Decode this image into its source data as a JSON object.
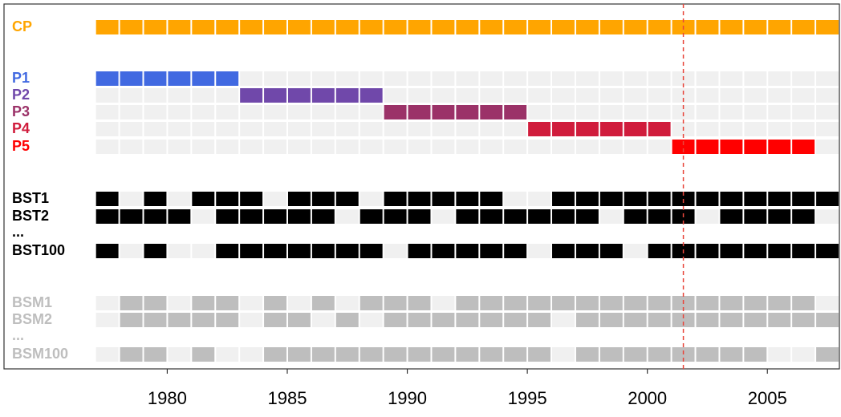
{
  "chart_data": {
    "type": "tile",
    "x": [
      1977,
      1978,
      1979,
      1980,
      1981,
      1982,
      1983,
      1984,
      1985,
      1986,
      1987,
      1988,
      1989,
      1990,
      1991,
      1992,
      1993,
      1994,
      1995,
      1996,
      1997,
      1998,
      1999,
      2000,
      2001,
      2002,
      2003,
      2004,
      2005,
      2006,
      2007
    ],
    "xlim": [
      1973.2,
      2008
    ],
    "xticks": [
      1980,
      1985,
      1990,
      1995,
      2000,
      2005
    ],
    "empty_color": "#f0f0f0",
    "vline": {
      "value": 2001.5,
      "color": "#e8463c"
    },
    "series": [
      {
        "name": "CP",
        "color": "#ffa500",
        "values": [
          1,
          1,
          1,
          1,
          1,
          1,
          1,
          1,
          1,
          1,
          1,
          1,
          1,
          1,
          1,
          1,
          1,
          1,
          1,
          1,
          1,
          1,
          1,
          1,
          1,
          1,
          1,
          1,
          1,
          1,
          1
        ]
      },
      {
        "name": "P1",
        "color": "#4169e1",
        "values": [
          1,
          1,
          1,
          1,
          1,
          1,
          0,
          0,
          0,
          0,
          0,
          0,
          0,
          0,
          0,
          0,
          0,
          0,
          0,
          0,
          0,
          0,
          0,
          0,
          0,
          0,
          0,
          0,
          0,
          0,
          0
        ]
      },
      {
        "name": "P2",
        "color": "#7048aa",
        "values": [
          0,
          0,
          0,
          0,
          0,
          0,
          1,
          1,
          1,
          1,
          1,
          1,
          0,
          0,
          0,
          0,
          0,
          0,
          0,
          0,
          0,
          0,
          0,
          0,
          0,
          0,
          0,
          0,
          0,
          0,
          0
        ]
      },
      {
        "name": "P3",
        "color": "#9b3268",
        "values": [
          0,
          0,
          0,
          0,
          0,
          0,
          0,
          0,
          0,
          0,
          0,
          0,
          1,
          1,
          1,
          1,
          1,
          1,
          0,
          0,
          0,
          0,
          0,
          0,
          0,
          0,
          0,
          0,
          0,
          0,
          0
        ]
      },
      {
        "name": "P4",
        "color": "#d01c3c",
        "values": [
          0,
          0,
          0,
          0,
          0,
          0,
          0,
          0,
          0,
          0,
          0,
          0,
          0,
          0,
          0,
          0,
          0,
          0,
          1,
          1,
          1,
          1,
          1,
          1,
          0,
          0,
          0,
          0,
          0,
          0,
          0
        ]
      },
      {
        "name": "P5",
        "color": "#ff0000",
        "values": [
          0,
          0,
          0,
          0,
          0,
          0,
          0,
          0,
          0,
          0,
          0,
          0,
          0,
          0,
          0,
          0,
          0,
          0,
          0,
          0,
          0,
          0,
          0,
          0,
          1,
          1,
          1,
          1,
          1,
          1,
          0
        ]
      },
      {
        "name": "BST1",
        "color": "#000000",
        "values": [
          1,
          0,
          1,
          0,
          1,
          1,
          1,
          0,
          1,
          1,
          1,
          0,
          1,
          1,
          1,
          1,
          1,
          0,
          0,
          1,
          1,
          1,
          1,
          1,
          1,
          1,
          1,
          1,
          1,
          1,
          1
        ]
      },
      {
        "name": "BST2",
        "color": "#000000",
        "values": [
          1,
          1,
          1,
          1,
          0,
          1,
          1,
          1,
          1,
          1,
          0,
          1,
          1,
          1,
          0,
          1,
          1,
          1,
          1,
          1,
          1,
          0,
          1,
          1,
          1,
          0,
          1,
          1,
          1,
          1,
          0
        ]
      },
      {
        "name": "...",
        "color": "#000000"
      },
      {
        "name": "BST100",
        "color": "#000000",
        "values": [
          1,
          0,
          1,
          0,
          0,
          1,
          1,
          1,
          1,
          1,
          1,
          1,
          0,
          1,
          1,
          1,
          1,
          1,
          0,
          1,
          1,
          1,
          0,
          1,
          1,
          1,
          1,
          1,
          1,
          1,
          1
        ]
      },
      {
        "name": "BSM1",
        "color": "#bebebe",
        "values": [
          0,
          1,
          1,
          0,
          1,
          1,
          0,
          1,
          0,
          1,
          0,
          1,
          1,
          1,
          0,
          1,
          1,
          1,
          1,
          1,
          1,
          1,
          1,
          1,
          1,
          1,
          1,
          1,
          1,
          1,
          0
        ]
      },
      {
        "name": "BSM2",
        "color": "#bebebe",
        "values": [
          0,
          1,
          1,
          1,
          1,
          1,
          0,
          1,
          1,
          0,
          1,
          0,
          1,
          1,
          1,
          1,
          1,
          1,
          1,
          0,
          1,
          1,
          1,
          1,
          1,
          1,
          1,
          1,
          1,
          1,
          1
        ]
      },
      {
        "name": "...",
        "color": "#bebebe"
      },
      {
        "name": "BSM100",
        "color": "#bebebe",
        "values": [
          0,
          1,
          1,
          0,
          1,
          0,
          0,
          1,
          1,
          1,
          1,
          1,
          1,
          1,
          1,
          1,
          1,
          1,
          1,
          0,
          1,
          1,
          1,
          1,
          1,
          1,
          1,
          1,
          0,
          0,
          1
        ]
      }
    ]
  }
}
